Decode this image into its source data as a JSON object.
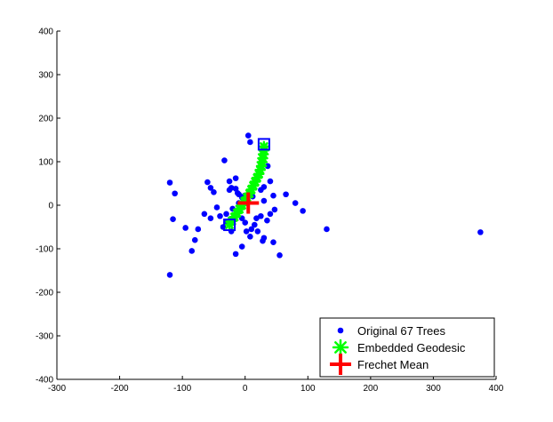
{
  "chart_data": {
    "type": "scatter",
    "title": "",
    "xlabel": "",
    "ylabel": "",
    "xlim": [
      -300,
      400
    ],
    "ylim": [
      -400,
      400
    ],
    "xticks": [
      -300,
      -200,
      -100,
      0,
      100,
      200,
      300,
      400
    ],
    "yticks": [
      -400,
      -300,
      -200,
      -100,
      0,
      100,
      200,
      300,
      400
    ],
    "grid": false,
    "legend_position": "bottom-right",
    "series": [
      {
        "name": "Original 67 Trees",
        "marker": "dot",
        "color": "#0000FF",
        "points": [
          [
            5,
            160
          ],
          [
            8,
            145
          ],
          [
            -33,
            103
          ],
          [
            -120,
            52
          ],
          [
            -112,
            27
          ],
          [
            -115,
            -32
          ],
          [
            -60,
            53
          ],
          [
            -55,
            40
          ],
          [
            -50,
            30
          ],
          [
            -25,
            55
          ],
          [
            -15,
            62
          ],
          [
            -25,
            35
          ],
          [
            -22,
            40
          ],
          [
            -15,
            38
          ],
          [
            -12,
            28
          ],
          [
            -10,
            25
          ],
          [
            -5,
            18
          ],
          [
            -1,
            22
          ],
          [
            3,
            10
          ],
          [
            -5,
            0
          ],
          [
            -10,
            5
          ],
          [
            8,
            30
          ],
          [
            12,
            20
          ],
          [
            25,
            35
          ],
          [
            30,
            42
          ],
          [
            36,
            90
          ],
          [
            40,
            55
          ],
          [
            30,
            10
          ],
          [
            45,
            22
          ],
          [
            65,
            25
          ],
          [
            80,
            5
          ],
          [
            92,
            -13
          ],
          [
            47,
            -10
          ],
          [
            40,
            -20
          ],
          [
            35,
            -35
          ],
          [
            25,
            -25
          ],
          [
            15,
            -45
          ],
          [
            10,
            -55
          ],
          [
            2,
            -60
          ],
          [
            8,
            -72
          ],
          [
            28,
            -82
          ],
          [
            45,
            -85
          ],
          [
            30,
            -75
          ],
          [
            20,
            -60
          ],
          [
            55,
            -115
          ],
          [
            -5,
            -95
          ],
          [
            -15,
            -112
          ],
          [
            -10,
            -15
          ],
          [
            -20,
            -8
          ],
          [
            -5,
            -30
          ],
          [
            -30,
            -20
          ],
          [
            -35,
            -50
          ],
          [
            -55,
            -30
          ],
          [
            -65,
            -20
          ],
          [
            -75,
            -55
          ],
          [
            -80,
            -80
          ],
          [
            -85,
            -105
          ],
          [
            -95,
            -52
          ],
          [
            -120,
            -160
          ],
          [
            -30,
            -40
          ],
          [
            18,
            -30
          ],
          [
            -45,
            -5
          ],
          [
            -40,
            -25
          ],
          [
            0,
            -40
          ],
          [
            -22,
            -60
          ],
          [
            130,
            -55
          ],
          [
            375,
            -62
          ]
        ]
      },
      {
        "name": "Embedded Geodesic",
        "marker": "asterisk",
        "color": "#00FF00",
        "points": [
          [
            -25,
            -45
          ],
          [
            -21,
            -36
          ],
          [
            -17,
            -27
          ],
          [
            -13,
            -18
          ],
          [
            -9,
            -9
          ],
          [
            -5,
            0
          ],
          [
            -1,
            9
          ],
          [
            3,
            18
          ],
          [
            7,
            27
          ],
          [
            10,
            36
          ],
          [
            13,
            45
          ],
          [
            16,
            54
          ],
          [
            19,
            63
          ],
          [
            22,
            72
          ],
          [
            24,
            81
          ],
          [
            26,
            90
          ],
          [
            27,
            99
          ],
          [
            28,
            108
          ],
          [
            29,
            117
          ],
          [
            30,
            126
          ],
          [
            30,
            135
          ]
        ]
      },
      {
        "name": "Frechet Mean",
        "marker": "plus",
        "color": "#FF0000",
        "points": [
          [
            5,
            5
          ]
        ]
      }
    ],
    "highlighted_endpoints": {
      "marker": "square",
      "color": "#0000FF",
      "points": [
        [
          -25,
          -45
        ],
        [
          30,
          140
        ]
      ]
    }
  }
}
